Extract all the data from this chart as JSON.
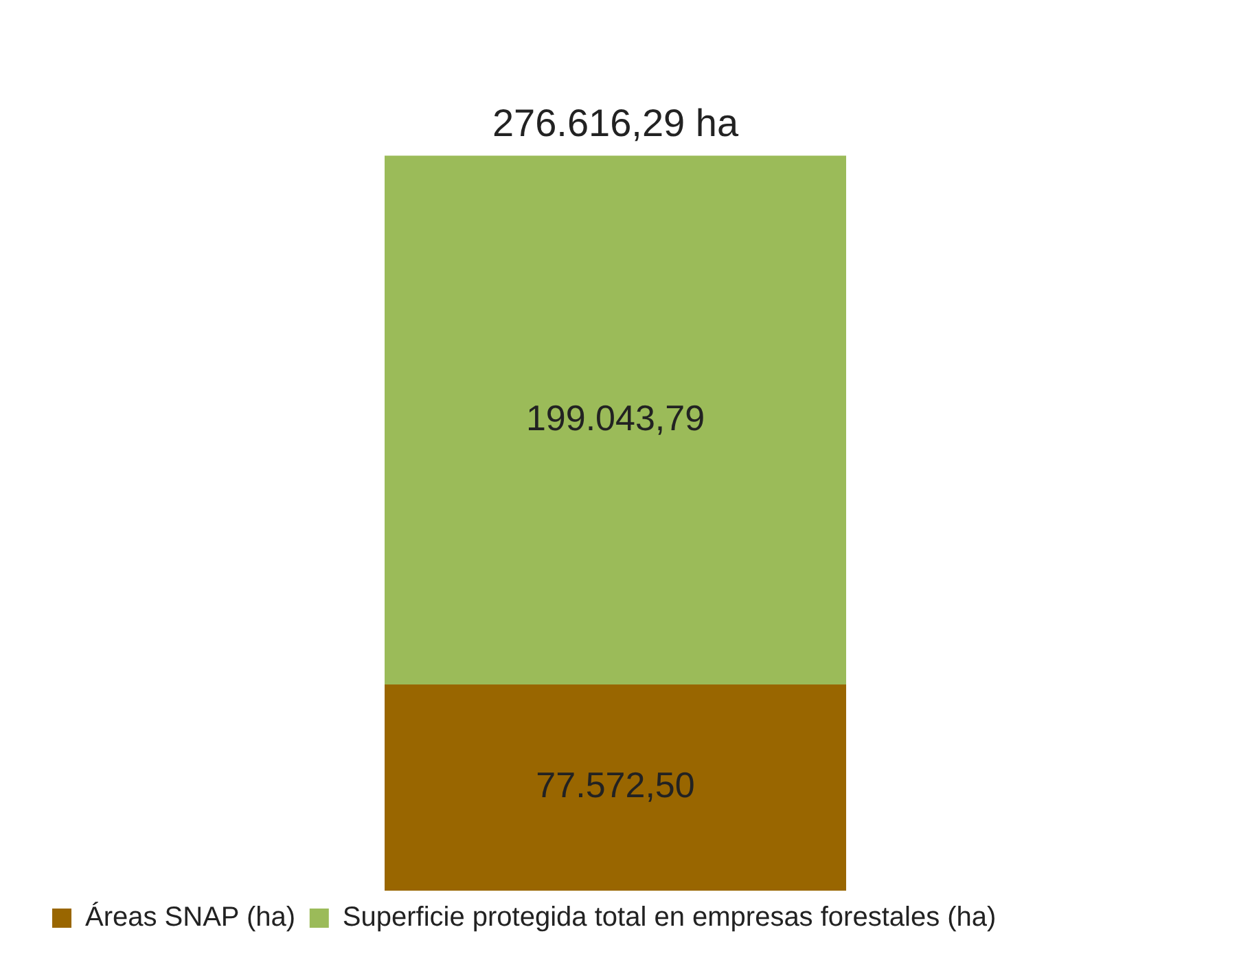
{
  "chart_data": {
    "type": "bar",
    "stacked": true,
    "categories": [
      null
    ],
    "series": [
      {
        "name": "Áreas SNAP (ha)",
        "color": "#996600",
        "values": [
          77572.5
        ],
        "value_labels": [
          "77.572,50"
        ]
      },
      {
        "name": "Superficie protegida total en empresas forestales (ha)",
        "color": "#9bbb59",
        "values": [
          199043.79
        ],
        "value_labels": [
          "199.043,79"
        ]
      }
    ],
    "totals": [
      "276.616,29 ha"
    ],
    "legend": "bottom"
  }
}
